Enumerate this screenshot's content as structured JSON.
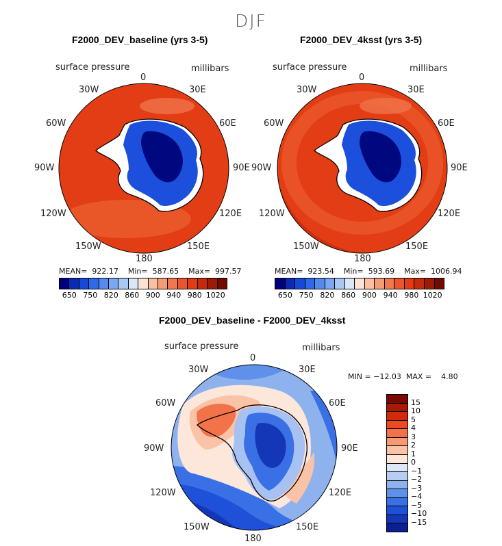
{
  "figure": {
    "season": "DJF"
  },
  "map_labels": {
    "variable": "surface pressure",
    "units": "millibars",
    "lon_0": "0",
    "lon_30e": "30E",
    "lon_60e": "60E",
    "lon_90e": "90E",
    "lon_120e": "120E",
    "lon_150e": "150E",
    "lon_180": "180",
    "lon_150w": "150W",
    "lon_120w": "120W",
    "lon_90w": "90W",
    "lon_60w": "60W",
    "lon_30w": "30W"
  },
  "panels": {
    "baseline": {
      "title": "F2000_DEV_baseline (yrs 3-5)",
      "stats": "MEAN=  922.17    Min=  587.65    Max=  997.57"
    },
    "sst": {
      "title": "F2000_DEV_4ksst (yrs 3-5)",
      "stats": "MEAN=  923.54    Min=  593.69    Max=  1006.94"
    },
    "diff": {
      "title": "F2000_DEV_baseline - F2000_DEV_4ksst",
      "stats": "MIN = −12.03  MAX =    4.80"
    }
  },
  "colorbar_top": {
    "colors": [
      "#00007f",
      "#0a2bb0",
      "#1748d6",
      "#2e6ae8",
      "#5689ec",
      "#7ba7f0",
      "#a9c8f3",
      "#dbe7f6",
      "#fde2d6",
      "#fbbfa4",
      "#f59b75",
      "#ef7850",
      "#e9552e",
      "#e33b14",
      "#c42a0c",
      "#9e1a06",
      "#730a00"
    ],
    "ticks": [
      "650",
      "750",
      "820",
      "860",
      "900",
      "940",
      "980",
      "1020"
    ]
  },
  "colorbar_diff": {
    "colors": [
      "#7a0a00",
      "#a81a06",
      "#d42a0c",
      "#ec4a20",
      "#f2734a",
      "#f79a74",
      "#fac3a8",
      "#fde6da",
      "#dde8f7",
      "#b7cef2",
      "#8db2ee",
      "#5f90ea",
      "#3a70e6",
      "#1f50d8",
      "#1437b8",
      "#0b1f92"
    ],
    "ticks": [
      "15",
      "10",
      "5",
      "4",
      "3",
      "2",
      "1",
      "0",
      "−1",
      "−2",
      "−3",
      "−4",
      "−5",
      "−10",
      "−15"
    ]
  },
  "chart_data": {
    "type": "heatmap",
    "title": "DJF",
    "panels": [
      {
        "name": "F2000_DEV_baseline (yrs 3-5)",
        "variable": "surface pressure",
        "units": "millibars",
        "mean": 922.17,
        "min": 587.65,
        "max": 997.57
      },
      {
        "name": "F2000_DEV_4ksst (yrs 3-5)",
        "variable": "surface pressure",
        "units": "millibars",
        "mean": 923.54,
        "min": 593.69,
        "max": 1006.94
      },
      {
        "name": "F2000_DEV_baseline - F2000_DEV_4ksst",
        "variable": "surface pressure",
        "units": "millibars",
        "min": -12.03,
        "max": 4.8
      }
    ],
    "contour_levels_absolute": [
      650,
      750,
      820,
      860,
      900,
      940,
      980,
      1020
    ],
    "contour_levels_difference": [
      -15,
      -10,
      -5,
      -4,
      -3,
      -2,
      -1,
      0,
      1,
      2,
      3,
      4,
      5,
      10,
      15
    ]
  }
}
